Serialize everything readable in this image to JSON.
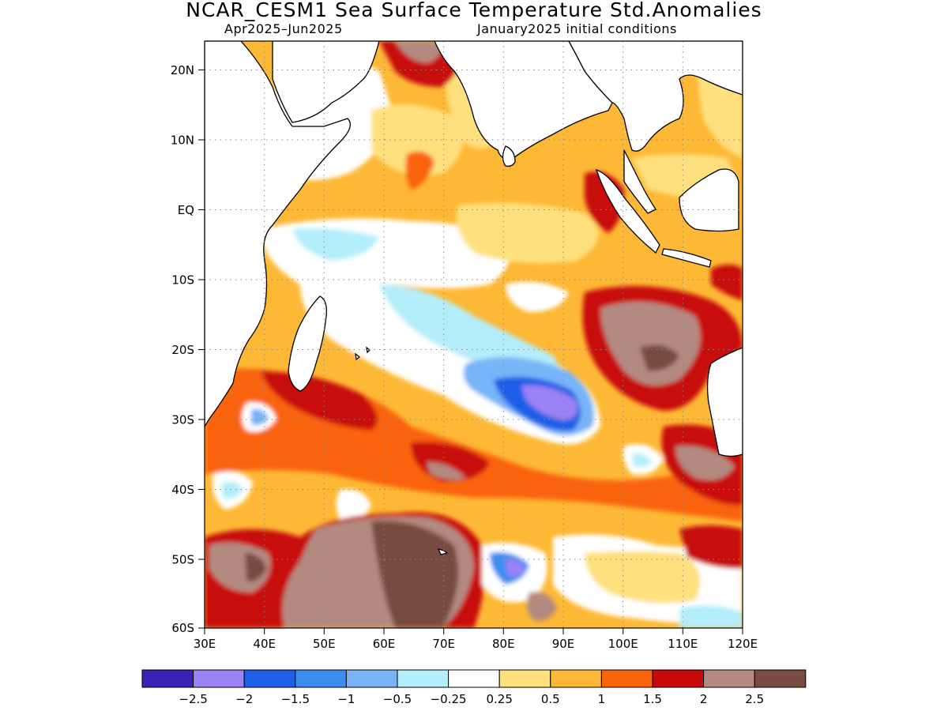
{
  "title": "NCAR_CESM1 Sea Surface Temperature Std.Anomalies",
  "subtitle_left": "Apr2025–Jun2025",
  "subtitle_right": "January2025 initial conditions",
  "map": {
    "lon_range": [
      30,
      120
    ],
    "lat_range": [
      -60,
      24
    ],
    "lon_ticks": [
      "30E",
      "40E",
      "50E",
      "60E",
      "70E",
      "80E",
      "90E",
      "100E",
      "110E",
      "120E"
    ],
    "lat_ticks": [
      "20N",
      "10N",
      "EQ",
      "10S",
      "20S",
      "30S",
      "40S",
      "50S",
      "60S"
    ],
    "grid": "dotted"
  },
  "colorbar": {
    "colors": [
      "#3b22b4",
      "#9b82f5",
      "#1f5fe6",
      "#3c8cf0",
      "#78b4f8",
      "#b4eefa",
      "#ffffff",
      "#fee07e",
      "#fdb835",
      "#fa640a",
      "#c80a0a",
      "#b48a80",
      "#784c40"
    ],
    "labels": [
      "−2.5",
      "−2",
      "−1.5",
      "−1",
      "−0.5",
      "−0.25",
      "0.25",
      "0.5",
      "1",
      "1.5",
      "2",
      "2.5"
    ]
  }
}
